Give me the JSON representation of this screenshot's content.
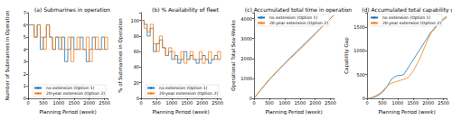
{
  "chart_data": [
    {
      "type": "step",
      "title": "(a) Submarines in operation",
      "x_label": "Planning Period (week)",
      "y_label": "Number of Submarines in Operation",
      "x": [
        0,
        100,
        200,
        300,
        400,
        500,
        600,
        700,
        800,
        900,
        1000,
        1100,
        1200,
        1300,
        1400,
        1500,
        1600,
        1700,
        1800,
        1900,
        2000,
        2100,
        2200,
        2300,
        2400,
        2500,
        2600
      ],
      "series": [
        {
          "name": "no extension (Option 1)",
          "color": "#1f77b4",
          "values": [
            6,
            6,
            5,
            6,
            4,
            5,
            6,
            5,
            4,
            5,
            4,
            5,
            3,
            4,
            5,
            4,
            4,
            5,
            4,
            3,
            4,
            5,
            4,
            4,
            5,
            4,
            4
          ]
        },
        {
          "name": "20-year extension (Option 2)",
          "color": "#ff7f0e",
          "values": [
            6,
            6,
            5,
            6,
            5,
            4,
            6,
            5,
            4,
            5,
            5,
            4,
            4,
            5,
            3,
            4,
            5,
            4,
            4,
            5,
            3,
            4,
            5,
            4,
            4,
            5,
            4
          ]
        }
      ],
      "xlim": [
        0,
        2600
      ],
      "xticks": [
        0,
        500,
        1000,
        1500,
        2000,
        2500
      ],
      "ylim": [
        0,
        7
      ],
      "yticks": [
        0,
        1,
        2,
        3,
        4,
        5,
        6,
        7
      ],
      "legend": "lower right"
    },
    {
      "type": "step",
      "title": "(b) % Availability of fleet",
      "x_label": "Planning Period (week)",
      "y_label": "% of Submarines in Operation",
      "x": [
        0,
        100,
        200,
        300,
        400,
        500,
        600,
        700,
        800,
        900,
        1000,
        1100,
        1200,
        1300,
        1400,
        1500,
        1600,
        1700,
        1800,
        1900,
        2000,
        2100,
        2200,
        2300,
        2400,
        2500,
        2600
      ],
      "series": [
        {
          "name": "no extension (Option 1)",
          "color": "#1f77b4",
          "values": [
            100,
            95,
            80,
            90,
            60,
            70,
            75,
            65,
            55,
            60,
            50,
            55,
            45,
            50,
            60,
            50,
            55,
            50,
            45,
            50,
            55,
            50,
            45,
            50,
            55,
            50,
            50
          ]
        },
        {
          "name": "20-year extension (Option 2)",
          "color": "#ff7f0e",
          "values": [
            100,
            90,
            85,
            95,
            70,
            60,
            80,
            65,
            55,
            65,
            60,
            50,
            50,
            60,
            45,
            50,
            60,
            50,
            50,
            60,
            45,
            50,
            60,
            50,
            50,
            60,
            50
          ]
        }
      ],
      "xlim": [
        0,
        2600
      ],
      "xticks": [
        0,
        500,
        1000,
        1500,
        2000,
        2500
      ],
      "ylim": [
        0,
        110
      ],
      "yticks": [
        0,
        20,
        40,
        60,
        80,
        100
      ],
      "legend": "lower right"
    },
    {
      "type": "line",
      "title": "(c) Accumulated total time in operation",
      "x_label": "Planning Period (week)",
      "y_label": "Operational Total Sea-Weeks",
      "x": [
        0,
        100,
        200,
        300,
        400,
        500,
        600,
        700,
        800,
        900,
        1000,
        1100,
        1200,
        1300,
        1400,
        1500,
        1600,
        1700,
        1800,
        1900,
        2000,
        2100,
        2200,
        2300,
        2400,
        2500,
        2600
      ],
      "series": [
        {
          "name": "no extension (Option 1)",
          "color": "#1f77b4",
          "values": [
            0,
            200,
            390,
            580,
            760,
            930,
            1100,
            1260,
            1420,
            1580,
            1740,
            1900,
            2060,
            2210,
            2360,
            2510,
            2660,
            2810,
            2960,
            3110,
            3260,
            3410,
            3560,
            3710,
            3860,
            4010,
            4160
          ]
        },
        {
          "name": "20-year extension (Option 2)",
          "color": "#ff7f0e",
          "values": [
            0,
            200,
            390,
            580,
            770,
            950,
            1120,
            1280,
            1440,
            1590,
            1740,
            1880,
            2020,
            2160,
            2300,
            2450,
            2600,
            2750,
            2900,
            3060,
            3220,
            3380,
            3540,
            3700,
            3860,
            4020,
            4180
          ]
        }
      ],
      "xlim": [
        0,
        2600
      ],
      "xticks": [
        0,
        500,
        1000,
        1500,
        2000,
        2500
      ],
      "ylim": [
        0,
        4300
      ],
      "yticks": [
        0,
        1000,
        2000,
        3000,
        4000
      ],
      "legend": "upper left"
    },
    {
      "type": "line",
      "title": "(d) Accumulated total capability gap",
      "x_label": "Planning Period (week)",
      "y_label": "Capability Gap",
      "x": [
        0,
        100,
        200,
        300,
        400,
        500,
        600,
        700,
        800,
        900,
        1000,
        1100,
        1200,
        1300,
        1400,
        1500,
        1600,
        1700,
        1800,
        1900,
        2000,
        2100,
        2200,
        2300,
        2400,
        2500,
        2600
      ],
      "series": [
        {
          "name": "no extension (Option 1)",
          "color": "#1f77b4",
          "values": [
            0,
            0,
            20,
            40,
            80,
            120,
            200,
            300,
            400,
            450,
            480,
            480,
            500,
            600,
            700,
            800,
            900,
            1000,
            1100,
            1200,
            1300,
            1400,
            1450,
            1550,
            1600,
            1650,
            1700
          ]
        },
        {
          "name": "20-year extension (Option 2)",
          "color": "#ff7f0e",
          "values": [
            0,
            0,
            30,
            60,
            100,
            150,
            220,
            280,
            320,
            340,
            360,
            380,
            400,
            420,
            480,
            560,
            680,
            800,
            950,
            1100,
            1250,
            1380,
            1480,
            1560,
            1620,
            1680,
            1720
          ]
        }
      ],
      "xlim": [
        0,
        2600
      ],
      "xticks": [
        0,
        500,
        1000,
        1500,
        2000,
        2500
      ],
      "ylim": [
        0,
        1800
      ],
      "yticks": [
        0,
        500,
        1000,
        1500
      ],
      "legend": "upper left"
    }
  ]
}
